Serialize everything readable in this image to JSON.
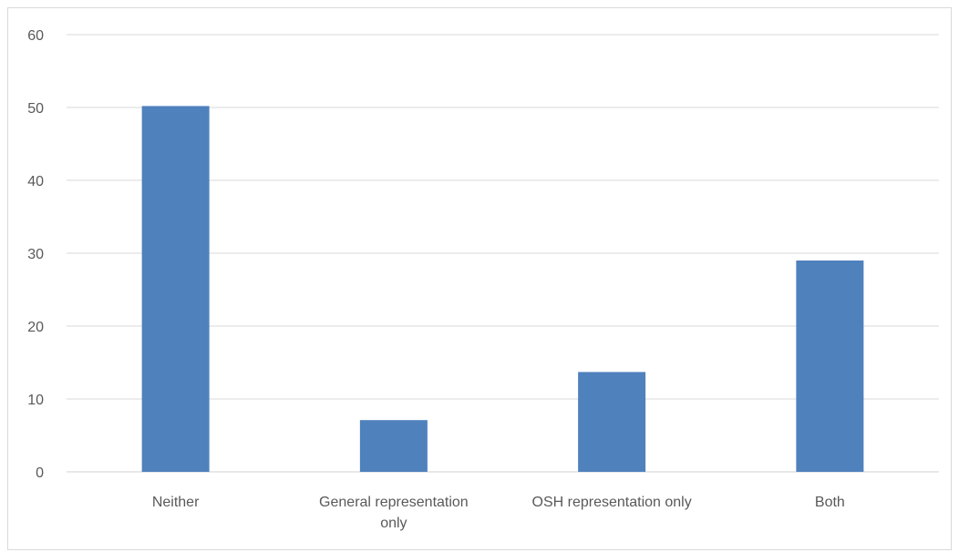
{
  "chart_data": {
    "type": "bar",
    "categories": [
      [
        "Neither"
      ],
      [
        "General representation",
        "only"
      ],
      [
        "OSH representation only"
      ],
      [
        "Both"
      ]
    ],
    "series": [
      {
        "values": [
          50.2,
          7.1,
          13.7,
          29.0
        ],
        "color": "#4f81bd"
      }
    ],
    "ylim": [
      0,
      60
    ],
    "yticks": [
      0,
      10,
      20,
      30,
      40,
      50,
      60
    ],
    "grid": true,
    "legend": "none",
    "title": "",
    "xlabel": "",
    "ylabel": ""
  }
}
